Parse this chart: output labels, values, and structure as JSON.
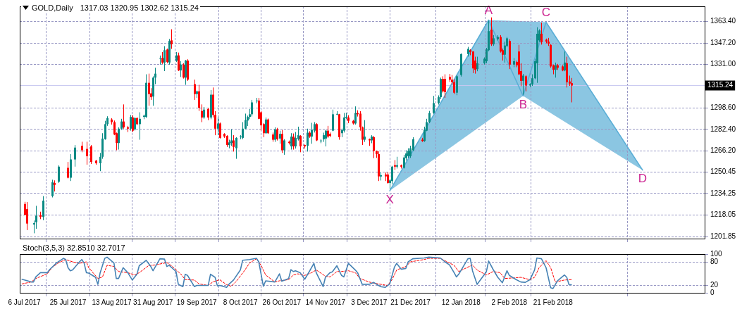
{
  "chart_data": [
    {
      "type": "candlestick",
      "title": "GOLD,Daily",
      "subtitle": "1317.03 1320.95 1302.62 1315.24",
      "x": [
        "2017-07-06",
        "2017-07-07",
        "2017-07-10",
        "2017-07-11",
        "2017-07-13",
        "2017-07-14",
        "2017-07-18",
        "2017-07-19",
        "2017-07-21",
        "2017-07-25",
        "2017-07-26",
        "2017-07-28",
        "2017-07-31",
        "2017-08-02",
        "2017-08-04",
        "2017-08-06",
        "2017-08-08",
        "2017-08-09",
        "2017-08-10",
        "2017-08-11",
        "2017-08-13",
        "2017-08-14",
        "2017-08-15",
        "2017-08-16",
        "2017-08-17",
        "2017-08-18",
        "2017-08-20",
        "2017-08-21",
        "2017-08-22",
        "2017-08-23",
        "2017-08-24",
        "2017-08-25",
        "2017-08-27",
        "2017-08-28",
        "2017-08-29",
        "2017-08-30",
        "2017-08-31",
        "2017-09-01",
        "2017-09-03",
        "2017-09-04",
        "2017-09-05",
        "2017-09-06",
        "2017-09-07",
        "2017-09-08",
        "2017-09-10",
        "2017-09-11",
        "2017-09-12",
        "2017-09-13",
        "2017-09-14",
        "2017-09-15",
        "2017-09-18",
        "2017-09-19",
        "2017-09-20",
        "2017-09-21",
        "2017-09-22",
        "2017-09-24",
        "2017-09-25",
        "2017-09-26",
        "2017-09-27",
        "2017-09-28",
        "2017-09-29",
        "2017-10-01",
        "2017-10-02",
        "2017-10-03",
        "2017-10-04",
        "2017-10-05",
        "2017-10-06",
        "2017-10-08",
        "2017-10-09",
        "2017-10-10",
        "2017-10-11",
        "2017-10-12",
        "2017-10-13",
        "2017-10-15",
        "2017-10-16",
        "2017-10-17",
        "2017-10-18",
        "2017-10-19",
        "2017-10-20",
        "2017-10-22",
        "2017-10-23",
        "2017-10-24",
        "2017-10-25",
        "2017-10-26",
        "2017-10-27",
        "2017-10-29",
        "2017-10-30",
        "2017-10-31",
        "2017-11-01",
        "2017-11-02",
        "2017-11-03",
        "2017-11-05",
        "2017-11-06",
        "2017-11-07",
        "2017-11-08",
        "2017-11-09",
        "2017-11-10",
        "2017-11-12",
        "2017-11-13",
        "2017-11-14",
        "2017-11-15",
        "2017-11-16",
        "2017-11-17",
        "2017-11-19",
        "2017-11-20",
        "2017-11-21",
        "2017-11-22",
        "2017-11-23",
        "2017-11-24",
        "2017-11-26",
        "2017-11-27",
        "2017-11-28",
        "2017-11-29",
        "2017-11-30",
        "2017-12-01",
        "2017-12-03",
        "2017-12-04",
        "2017-12-05",
        "2017-12-06",
        "2017-12-07",
        "2017-12-08",
        "2017-12-10",
        "2017-12-11",
        "2017-12-12",
        "2017-12-13",
        "2017-12-14",
        "2017-12-15",
        "2017-12-17",
        "2017-12-18",
        "2017-12-19",
        "2017-12-20",
        "2017-12-21",
        "2017-12-22",
        "2017-12-26",
        "2017-12-27",
        "2017-12-28",
        "2017-12-29",
        "2017-12-31",
        "2018-01-02",
        "2018-01-03",
        "2018-01-04",
        "2018-01-05",
        "2018-01-07",
        "2018-01-08",
        "2018-01-09",
        "2018-01-10",
        "2018-01-12",
        "2018-01-15",
        "2018-01-16",
        "2018-01-17",
        "2018-01-18",
        "2018-01-19",
        "2018-01-22",
        "2018-01-23",
        "2018-01-24",
        "2018-01-25",
        "2018-01-26",
        "2018-01-28",
        "2018-01-29",
        "2018-01-30",
        "2018-01-31",
        "2018-02-01",
        "2018-02-02",
        "2018-02-04",
        "2018-02-05",
        "2018-02-06",
        "2018-02-07",
        "2018-02-08",
        "2018-02-09",
        "2018-02-11",
        "2018-02-12",
        "2018-02-13",
        "2018-02-14",
        "2018-02-15",
        "2018-02-16",
        "2018-02-18",
        "2018-02-19",
        "2018-02-20",
        "2018-02-21",
        "2018-02-22",
        "2018-02-23",
        "2018-02-25",
        "2018-02-26",
        "2018-02-27",
        "2018-02-28",
        "2018-03-01"
      ],
      "ohlc": [
        [
          1226.4,
          1228,
          1218,
          1218.1
        ],
        [
          1222.5,
          1227.9,
          1206.8,
          1211.7
        ],
        [
          1211,
          1214,
          1204.4,
          1212
        ],
        [
          1212.7,
          1225,
          1207.8,
          1217.6
        ],
        [
          1218,
          1220.6,
          1215,
          1216.6
        ],
        [
          1216.6,
          1232.3,
          1214.2,
          1228.9
        ],
        [
          1232.3,
          1244.6,
          1231.3,
          1242.7
        ],
        [
          1242.2,
          1244.1,
          1235.8,
          1240.7
        ],
        [
          1243.1,
          1255.4,
          1242.2,
          1254.4
        ],
        [
          1253.5,
          1257.9,
          1245.6,
          1246.1
        ],
        [
          1246.1,
          1263.8,
          1243.6,
          1259.8
        ],
        [
          1259.8,
          1270.6,
          1254.4,
          1268.7
        ],
        [
          1270.1,
          1273.1,
          1265.2,
          1266.7
        ],
        [
          1267.7,
          1273.1,
          1255.9,
          1262.3
        ],
        [
          1269.6,
          1270.6,
          1256.4,
          1257.9
        ],
        [
          1258.9,
          1259.5,
          1255.9,
          1256.9
        ],
        [
          1256.9,
          1264.7,
          1251,
          1261.8
        ],
        [
          1261.8,
          1279.5,
          1260.3,
          1275.5
        ],
        [
          1275,
          1288.8,
          1274.6,
          1286.3
        ],
        [
          1286.3,
          1292.2,
          1285,
          1290.8
        ],
        [
          1289.8,
          1290.8,
          1286,
          1287.8
        ],
        [
          1287.8,
          1289,
          1278,
          1278.5
        ],
        [
          1279.5,
          1280,
          1266.7,
          1272.1
        ],
        [
          1272.1,
          1283.9,
          1267.2,
          1282.9
        ],
        [
          1282.9,
          1290.3,
          1282,
          1288.3
        ],
        [
          1288.3,
          1301.1,
          1282.9,
          1283.9
        ],
        [
          1283.9,
          1285,
          1280.4,
          1282.9
        ],
        [
          1282.9,
          1293.2,
          1281.4,
          1291.7
        ],
        [
          1291.3,
          1293,
          1280.4,
          1281.4
        ],
        [
          1282.4,
          1291.5,
          1281.5,
          1290.8
        ],
        [
          1290.8,
          1291.5,
          1285.5,
          1286.3
        ],
        [
          1286.3,
          1295.2,
          1274.6,
          1290.3
        ],
        [
          1291.7,
          1293.5,
          1290,
          1292.7
        ],
        [
          1291.7,
          1323.7,
          1291,
          1317.3
        ],
        [
          1317.3,
          1324.2,
          1300.1,
          1308.9
        ],
        [
          1309.4,
          1313.3,
          1304.5,
          1306.5
        ],
        [
          1307,
          1322.2,
          1300.1,
          1321.2
        ],
        [
          1321.2,
          1328.6,
          1316.3,
          1324.2
        ],
        [
          1335.5,
          1337.8,
          1331,
          1336
        ],
        [
          1335.9,
          1340.4,
          1331.5,
          1332.5
        ],
        [
          1332.5,
          1344.8,
          1326.1,
          1341.8
        ],
        [
          1342.3,
          1343,
          1332,
          1333
        ],
        [
          1332.5,
          1350.2,
          1331,
          1348.7
        ],
        [
          1349.2,
          1357.5,
          1342.8,
          1346.2
        ],
        [
          1333.9,
          1340.4,
          1333,
          1337.9
        ],
        [
          1337.9,
          1340,
          1326.1,
          1326.6
        ],
        [
          1326.6,
          1333.5,
          1321.7,
          1331
        ],
        [
          1331,
          1332,
          1320.5,
          1321.2
        ],
        [
          1321.2,
          1334.5,
          1315.8,
          1334
        ],
        [
          1334,
          1335,
          1318.7,
          1319.7
        ],
        [
          1316.3,
          1319.7,
          1304.5,
          1308.9
        ],
        [
          1308.9,
          1311.5,
          1306,
          1310.9
        ],
        [
          1310.9,
          1315.8,
          1296.2,
          1298.6
        ],
        [
          1296.2,
          1301.1,
          1287.8,
          1291.3
        ],
        [
          1291.3,
          1299.1,
          1290.3,
          1297.2
        ],
        [
          1297.7,
          1298.5,
          1289.3,
          1291.3
        ],
        [
          1291.3,
          1311.9,
          1290,
          1308.4
        ],
        [
          1308.4,
          1313.8,
          1291.3,
          1293.2
        ],
        [
          1293.2,
          1296,
          1278,
          1282.9
        ],
        [
          1282.9,
          1291.3,
          1278,
          1286.8
        ],
        [
          1286.8,
          1287.5,
          1275.5,
          1276
        ],
        [
          1279,
          1279.5,
          1276,
          1277
        ],
        [
          1277.5,
          1278,
          1269.2,
          1270.6
        ],
        [
          1270.6,
          1274.6,
          1268.2,
          1272.6
        ],
        [
          1272.1,
          1282.4,
          1270,
          1274.1
        ],
        [
          1274.1,
          1278,
          1265.7,
          1269.2
        ],
        [
          1268.2,
          1276.5,
          1260.3,
          1276
        ],
        [
          1276.5,
          1278,
          1275,
          1277
        ],
        [
          1276,
          1287.8,
          1275,
          1282.9
        ],
        [
          1282.9,
          1294.2,
          1282.5,
          1289.3
        ],
        [
          1289,
          1292.7,
          1284.9,
          1291.7
        ],
        [
          1291.7,
          1297.6,
          1290,
          1293.7
        ],
        [
          1293.7,
          1304.5,
          1292,
          1302.6
        ],
        [
          1303.5,
          1306,
          1302,
          1304
        ],
        [
          1304,
          1306,
          1290,
          1290.3
        ],
        [
          1295.2,
          1296,
          1281.4,
          1285.4
        ],
        [
          1286.3,
          1287,
          1276.5,
          1279.5
        ],
        [
          1279.5,
          1291.3,
          1279,
          1289.8
        ],
        [
          1289.8,
          1290.5,
          1279,
          1279.5
        ],
        [
          1278.5,
          1280,
          1273.1,
          1274.6
        ],
        [
          1274.6,
          1283.9,
          1273,
          1282.4
        ],
        [
          1282.4,
          1283.5,
          1274,
          1275
        ],
        [
          1275.5,
          1281.4,
          1271.6,
          1279
        ],
        [
          1279,
          1281.9,
          1264.7,
          1266.7
        ],
        [
          1266.7,
          1275,
          1263.3,
          1274.1
        ],
        [
          1273.1,
          1274,
          1271,
          1272.1
        ],
        [
          1269.6,
          1279.5,
          1267.2,
          1277
        ],
        [
          1277,
          1279.3,
          1267.2,
          1269.6
        ],
        [
          1269.6,
          1280.4,
          1268,
          1276
        ],
        [
          1275,
          1284.4,
          1274,
          1278
        ],
        [
          1277.5,
          1278,
          1265.2,
          1269.6
        ],
        [
          1270.6,
          1271,
          1268,
          1269.6
        ],
        [
          1270.1,
          1282.9,
          1265.7,
          1279.9
        ],
        [
          1279.9,
          1281,
          1276,
          1277
        ],
        [
          1277,
          1287.3,
          1271.6,
          1281.9
        ],
        [
          1281.4,
          1287.8,
          1280,
          1286.3
        ],
        [
          1286.3,
          1287,
          1273.6,
          1274.1
        ],
        [
          1273.5,
          1275,
          1272,
          1274
        ],
        [
          1275,
          1279.9,
          1273,
          1278
        ],
        [
          1275.5,
          1282,
          1269.6,
          1281.4
        ],
        [
          1281.4,
          1285,
          1276,
          1277
        ],
        [
          1279,
          1280,
          1276.5,
          1277.5
        ],
        [
          1281.4,
          1297.2,
          1281,
          1293.7
        ],
        [
          1293.5,
          1296,
          1293,
          1294
        ],
        [
          1293.7,
          1294,
          1274.6,
          1276.5
        ],
        [
          1279.5,
          1283,
          1276.5,
          1281.9
        ],
        [
          1281.4,
          1294.7,
          1280,
          1291.3
        ],
        [
          1291,
          1294.7,
          1290,
          1291.8
        ],
        [
          1291.3,
          1293,
          1287,
          1288.8
        ],
        [
          1288.8,
          1289.5,
          1286,
          1286.8
        ],
        [
          1286.8,
          1299.6,
          1286,
          1294.7
        ],
        [
          1294.7,
          1296.7,
          1292,
          1293.7
        ],
        [
          1294.2,
          1296,
          1281.4,
          1283.9
        ],
        [
          1283.9,
          1284.5,
          1270.6,
          1274.6
        ],
        [
          1274.6,
          1289.3,
          1273,
          1277
        ],
        [
          1275,
          1275.5,
          1270,
          1274.1
        ],
        [
          1274.1,
          1278,
          1272,
          1277
        ],
        [
          1276.5,
          1277.5,
          1260.8,
          1266.2
        ],
        [
          1266.2,
          1266.5,
          1261,
          1263.8
        ],
        [
          1263.8,
          1266,
          1243.6,
          1247.1
        ],
        [
          1247,
          1250,
          1244,
          1248
        ],
        [
          1248.5,
          1250,
          1243.6,
          1247.1
        ],
        [
          1248.5,
          1250.3,
          1241.7,
          1242.2
        ],
        [
          1242.2,
          1245,
          1237.7,
          1244.1
        ],
        [
          1243.6,
          1255,
          1241.2,
          1254.4
        ],
        [
          1255.5,
          1259.3,
          1252,
          1254.4
        ],
        [
          1254.4,
          1261.8,
          1253,
          1255.5
        ],
        [
          1255.4,
          1256,
          1253,
          1254.4
        ],
        [
          1253.5,
          1263.3,
          1253,
          1261.3
        ],
        [
          1260.8,
          1266.7,
          1259,
          1264.3
        ],
        [
          1262.3,
          1268.2,
          1261,
          1266.2
        ],
        [
          1262.3,
          1270.1,
          1261,
          1268.2
        ],
        [
          1266.7,
          1276.5,
          1266,
          1275
        ],
        [
          1274.6,
          1276,
          1273,
          1273.6
        ],
        [
          1273.6,
          1284.4,
          1273,
          1281.9
        ],
        [
          1281.4,
          1290.3,
          1281,
          1287.8
        ],
        [
          1287.8,
          1296.2,
          1287,
          1294.7
        ],
        [
          1294.7,
          1307.5,
          1294,
          1302.1
        ],
        [
          1302.1,
          1307.9,
          1301,
          1306.5
        ],
        [
          1306.5,
          1321.2,
          1305,
          1320.2
        ],
        [
          1320.2,
          1322.2,
          1310,
          1310.9
        ],
        [
          1320.2,
          1323.7,
          1306,
          1310.4
        ],
        [
          1321.7,
          1324,
          1318,
          1319.7
        ],
        [
          1319.7,
          1323.2,
          1316,
          1317.8
        ],
        [
          1317.8,
          1320,
          1308.9,
          1309.9
        ],
        [
          1309.9,
          1323,
          1308,
          1322.2
        ],
        [
          1323.2,
          1339.4,
          1322,
          1338.9
        ],
        [
          1338.9,
          1344.3,
          1337,
          1342.8
        ],
        [
          1341.8,
          1342.5,
          1338,
          1340.4
        ],
        [
          1340.8,
          1341,
          1324.6,
          1328.1
        ],
        [
          1334,
          1336.9,
          1324.2,
          1327.1
        ],
        [
          1327.6,
          1336.9,
          1326,
          1332
        ],
        [
          1332,
          1336.4,
          1331,
          1335.4
        ],
        [
          1333.5,
          1343.5,
          1332,
          1342.3
        ],
        [
          1341.8,
          1363.9,
          1341,
          1356.1
        ],
        [
          1357.1,
          1366.4,
          1345,
          1346.2
        ],
        [
          1346.2,
          1353.1,
          1345,
          1350.7
        ],
        [
          1350,
          1353,
          1349,
          1351.7
        ],
        [
          1351.7,
          1353.1,
          1340,
          1340.8
        ],
        [
          1341.8,
          1343,
          1334,
          1338.4
        ],
        [
          1338.4,
          1348.2,
          1332.5,
          1345.3
        ],
        [
          1345,
          1351.7,
          1344,
          1350.7
        ],
        [
          1348.7,
          1350,
          1327.6,
          1331
        ],
        [
          1331,
          1335.9,
          1329,
          1333.5
        ],
        [
          1333,
          1334,
          1329,
          1330.5
        ],
        [
          1340.8,
          1345.8,
          1323,
          1323.7
        ],
        [
          1326.1,
          1332,
          1314.8,
          1318.8
        ],
        [
          1318.8,
          1324,
          1308.4,
          1322.7
        ],
        [
          1322.2,
          1323,
          1310.9,
          1315.3
        ],
        [
          1315.3,
          1317,
          1314,
          1316.3
        ],
        [
          1316.3,
          1323.7,
          1315,
          1320.7
        ],
        [
          1320.7,
          1335.4,
          1320,
          1333.5
        ],
        [
          1332,
          1359,
          1317.3,
          1354.1
        ],
        [
          1349.2,
          1357.5,
          1348,
          1356.6
        ],
        [
          1354.1,
          1362.5,
          1346,
          1347.7
        ],
        [
          1349.7,
          1350.5,
          1347,
          1348.2
        ],
        [
          1348.2,
          1351,
          1345,
          1346.7
        ],
        [
          1345.8,
          1346.3,
          1328.6,
          1329.6
        ],
        [
          1330.5,
          1331,
          1323.7,
          1327.1
        ],
        [
          1327.1,
          1332.5,
          1321.2,
          1330.5
        ],
        [
          1330.5,
          1331.5,
          1327,
          1328.6
        ],
        [
          1329.6,
          1330.5,
          1326,
          1326.6
        ],
        [
          1326.6,
          1340.8,
          1326,
          1332.5
        ],
        [
          1332,
          1336.9,
          1313.8,
          1317.8
        ],
        [
          1318.3,
          1322.7,
          1315,
          1316.8
        ],
        [
          1317.03,
          1320.95,
          1302.62,
          1315.24
        ]
      ],
      "colors": [
        "#ff0000",
        "#ff0000",
        "#0a8a84",
        "#0a8a84",
        "#ff0000",
        "#0a8a84",
        "#0a8a84",
        "#ff0000",
        "#0a8a84",
        "#ff0000",
        "#0a8a84",
        "#0a8a84",
        "#ff0000",
        "#ff0000",
        "#ff0000",
        "#ff0000",
        "#0a8a84",
        "#0a8a84",
        "#0a8a84",
        "#0a8a84",
        "#ff0000",
        "#ff0000",
        "#ff0000",
        "#0a8a84",
        "#0a8a84",
        "#ff0000",
        "#ff0000",
        "#0a8a84",
        "#ff0000",
        "#0a8a84",
        "#ff0000",
        "#0a8a84",
        "#0a8a84",
        "#0a8a84",
        "#ff0000",
        "#ff0000",
        "#0a8a84",
        "#0a8a84",
        "#0a8a84",
        "#ff0000",
        "#0a8a84",
        "#ff0000",
        "#0a8a84",
        "#ff0000",
        "#0a8a84",
        "#ff0000",
        "#0a8a84",
        "#ff0000",
        "#0a8a84",
        "#ff0000",
        "#ff0000",
        "#0a8a84",
        "#ff0000",
        "#ff0000",
        "#0a8a84",
        "#ff0000",
        "#0a8a84",
        "#ff0000",
        "#ff0000",
        "#0a8a84",
        "#ff0000",
        "#ff0000",
        "#ff0000",
        "#0a8a84",
        "#0a8a84",
        "#ff0000",
        "#0a8a84",
        "#0a8a84",
        "#0a8a84",
        "#0a8a84",
        "#0a8a84",
        "#0a8a84",
        "#0a8a84",
        "#0a8a84",
        "#ff0000",
        "#ff0000",
        "#ff0000",
        "#0a8a84",
        "#ff0000",
        "#ff0000",
        "#0a8a84",
        "#ff0000",
        "#0a8a84",
        "#ff0000",
        "#0a8a84",
        "#ff0000",
        "#0a8a84",
        "#ff0000",
        "#0a8a84",
        "#0a8a84",
        "#ff0000",
        "#ff0000",
        "#0a8a84",
        "#ff0000",
        "#0a8a84",
        "#0a8a84",
        "#ff0000",
        "#0a8a84",
        "#0a8a84",
        "#0a8a84",
        "#ff0000",
        "#ff0000",
        "#0a8a84",
        "#0a8a84",
        "#ff0000",
        "#0a8a84",
        "#0a8a84",
        "#0a8a84",
        "#ff0000",
        "#ff0000",
        "#0a8a84",
        "#ff0000",
        "#ff0000",
        "#ff0000",
        "#0a8a84",
        "#ff0000",
        "#0a8a84",
        "#ff0000",
        "#ff0000",
        "#ff0000",
        "#0a8a84",
        "#ff0000",
        "#ff0000",
        "#0a8a84",
        "#0a8a84",
        "#ff0000",
        "#0a8a84",
        "#ff0000",
        "#0a8a84",
        "#0a8a84",
        "#0a8a84",
        "#0a8a84",
        "#0a8a84",
        "#ff0000",
        "#0a8a84",
        "#0a8a84",
        "#0a8a84",
        "#0a8a84",
        "#0a8a84",
        "#0a8a84",
        "#ff0000",
        "#ff0000",
        "#ff0000",
        "#ff0000",
        "#ff0000",
        "#0a8a84",
        "#0a8a84",
        "#0a8a84",
        "#ff0000",
        "#ff0000",
        "#ff0000",
        "#0a8a84",
        "#0a8a84",
        "#0a8a84",
        "#0a8a84",
        "#ff0000",
        "#0a8a84",
        "#0a8a84",
        "#ff0000",
        "#ff0000",
        "#0a8a84",
        "#0a8a84",
        "#ff0000",
        "#0a8a84",
        "#ff0000",
        "#ff0000",
        "#ff0000",
        "#0a8a84",
        "#ff0000",
        "#0a8a84",
        "#0a8a84",
        "#0a8a84",
        "#0a8a84",
        "#0a8a84",
        "#ff0000",
        "#ff0000",
        "#ff0000",
        "#ff0000",
        "#ff0000",
        "#0a8a84",
        "#ff0000",
        "#ff0000",
        "#0a8a84",
        "#ff0000",
        "#ff0000",
        "#ff0000"
      ],
      "series": [
        {
          "type": "line",
          "color": "#5aaed6",
          "x": [
            "2017-12-12",
            "2018-01-24",
            "2018-02-08",
            "2018-02-18",
            "2018-04-01"
          ],
          "values": [
            1236.3,
            1364.4,
            1307.5,
            1362.8,
            1251.8
          ]
        }
      ],
      "annotations": [
        {
          "text": "X",
          "x": "2017-12-12",
          "y": 1236.3
        },
        {
          "text": "A",
          "x": "2018-01-24",
          "y": 1364.4
        },
        {
          "text": "B",
          "x": "2018-02-08",
          "y": 1307.5
        },
        {
          "text": "C",
          "x": "2018-02-18",
          "y": 1362.8
        },
        {
          "text": "D",
          "x": "2018-04-01",
          "y": 1251.8
        }
      ],
      "ref_lines": [
        {
          "axis": "y",
          "value": 1315.24,
          "label": "1315.24",
          "color": "#c8c8f0"
        }
      ],
      "xlim": [
        "2017-07-04",
        "2018-04-28"
      ],
      "xticks": [
        {
          "value": "2017-07-06",
          "label": null
        },
        {
          "value": "2017-07-25",
          "label": null
        },
        {
          "value": "2017-08-13",
          "label": null
        },
        {
          "value": "2017-08-31",
          "label": null
        },
        {
          "value": "2017-09-19",
          "label": null
        },
        {
          "value": "2017-10-08",
          "label": null
        },
        {
          "value": "2017-10-26",
          "label": null
        },
        {
          "value": "2017-11-14",
          "label": null
        },
        {
          "value": "2017-12-03",
          "label": null
        },
        {
          "value": "2017-12-21",
          "label": null
        },
        {
          "value": "2018-01-12",
          "label": null
        },
        {
          "value": "2018-02-02",
          "label": null
        },
        {
          "value": "2018-02-21",
          "label": null
        },
        {
          "value": "2018-04-27",
          "label": null
        }
      ],
      "ylim": [
        1200.4,
        1374.7
      ],
      "yticks": [
        {
          "value": 1201.85,
          "label": "1201.85"
        },
        {
          "value": 1218.05,
          "label": "1218.05"
        },
        {
          "value": 1234.25,
          "label": "1234.25"
        },
        {
          "value": 1250.45,
          "label": "1250.45"
        },
        {
          "value": 1266.2,
          "label": "1266.20"
        },
        {
          "value": 1282.4,
          "label": "1282.40"
        },
        {
          "value": 1298.6,
          "label": "1298.60"
        },
        {
          "value": 1331,
          "label": "1331.00"
        },
        {
          "value": 1347.2,
          "label": "1347.20"
        },
        {
          "value": 1363.4,
          "label": "1363.40"
        }
      ],
      "grid": true,
      "tick_labels": "y",
      "marker": "none"
    },
    {
      "type": "line",
      "title": "Stoch(3,5,3) 32.8510 32.7017",
      "series": [
        {
          "color": "#4682b4",
          "line_style": "solid",
          "x": [
            "2017-07-05",
            "2017-07-09",
            "2017-07-10",
            "2017-07-11",
            "2017-07-13",
            "2017-07-16",
            "2017-07-17",
            "2017-07-20",
            "2017-07-23",
            "2017-07-24",
            "2017-07-25",
            "2017-07-26",
            "2017-07-27",
            "2017-07-30",
            "2017-07-31",
            "2017-08-01",
            "2017-08-02",
            "2017-08-03",
            "2017-08-06",
            "2017-08-07",
            "2017-08-08",
            "2017-08-10",
            "2017-08-11",
            "2017-08-14",
            "2017-08-15",
            "2017-08-16",
            "2017-08-18",
            "2017-08-20",
            "2017-08-22",
            "2017-08-24",
            "2017-08-25",
            "2017-08-28",
            "2017-08-30",
            "2017-08-31",
            "2017-09-03",
            "2017-09-05",
            "2017-09-06",
            "2017-09-07",
            "2017-09-10",
            "2017-09-11",
            "2017-09-13",
            "2017-09-14",
            "2017-09-15",
            "2017-09-18",
            "2017-09-19",
            "2017-09-24",
            "2017-09-25",
            "2017-09-27",
            "2017-09-28",
            "2017-09-29",
            "2017-10-02",
            "2017-10-03",
            "2017-10-05",
            "2017-10-08",
            "2017-10-09",
            "2017-10-12",
            "2017-10-15",
            "2017-10-16",
            "2017-10-18",
            "2017-10-19",
            "2017-10-23",
            "2017-10-25",
            "2017-10-26",
            "2017-10-29",
            "2017-10-30",
            "2017-10-31",
            "2017-11-01",
            "2017-11-03",
            "2017-11-05",
            "2017-11-07",
            "2017-11-09",
            "2017-11-10",
            "2017-11-13",
            "2017-11-14",
            "2017-11-16",
            "2017-11-17",
            "2017-11-19",
            "2017-11-21",
            "2017-11-22",
            "2017-11-24",
            "2017-11-27",
            "2017-11-28",
            "2017-11-30",
            "2017-12-03",
            "2017-12-05",
            "2017-12-06",
            "2017-12-08",
            "2017-12-10",
            "2017-12-12",
            "2017-12-14",
            "2017-12-15",
            "2017-12-17",
            "2017-12-19",
            "2017-12-20",
            "2017-12-22",
            "2017-12-27",
            "2017-12-29",
            "2018-01-03",
            "2018-01-05",
            "2018-01-07",
            "2018-01-09",
            "2018-01-10",
            "2018-01-11",
            "2018-01-15",
            "2018-01-16",
            "2018-01-17",
            "2018-01-19",
            "2018-01-23",
            "2018-01-24",
            "2018-01-26",
            "2018-01-28",
            "2018-01-30",
            "2018-02-01",
            "2018-02-02",
            "2018-02-05",
            "2018-02-07",
            "2018-02-09",
            "2018-02-11",
            "2018-02-13",
            "2018-02-14",
            "2018-02-16",
            "2018-02-18",
            "2018-02-20",
            "2018-02-21",
            "2018-02-23",
            "2018-02-26",
            "2018-02-27",
            "2018-02-28",
            "2018-03-01"
          ],
          "values": [
            35,
            28,
            28,
            41,
            52,
            52,
            60,
            77,
            89,
            86,
            65,
            57,
            59,
            80,
            86,
            77,
            52,
            51,
            40,
            22,
            52,
            89,
            92,
            77,
            37,
            37,
            65,
            52,
            33,
            48,
            70,
            84,
            68,
            57,
            88,
            87,
            68,
            71,
            55,
            22,
            16,
            48,
            45,
            16,
            19,
            19,
            48,
            40,
            18,
            19,
            14,
            22,
            33,
            59,
            84,
            86,
            89,
            80,
            17,
            31,
            28,
            49,
            30,
            37,
            60,
            55,
            57,
            52,
            35,
            55,
            76,
            52,
            16,
            40,
            52,
            54,
            70,
            45,
            41,
            76,
            59,
            52,
            22,
            22,
            27,
            23,
            16,
            14,
            23,
            66,
            76,
            61,
            63,
            80,
            88,
            90,
            92,
            90,
            80,
            72,
            52,
            41,
            48,
            88,
            89,
            57,
            22,
            54,
            82,
            60,
            40,
            26,
            57,
            45,
            34,
            28,
            27,
            34,
            59,
            90,
            88,
            65,
            13,
            11,
            31,
            46,
            40,
            21,
            21
          ]
        },
        {
          "color": "#ff0000",
          "line_style": "dashed",
          "x": [
            "2017-07-05",
            "2017-07-09",
            "2017-07-11",
            "2017-07-16",
            "2017-07-18",
            "2017-07-21",
            "2017-07-24",
            "2017-07-27",
            "2017-07-30",
            "2017-08-02",
            "2017-08-03",
            "2017-08-07",
            "2017-08-09",
            "2017-08-11",
            "2017-08-14",
            "2017-08-16",
            "2017-08-20",
            "2017-08-23",
            "2017-08-25",
            "2017-08-29",
            "2017-09-01",
            "2017-09-06",
            "2017-09-08",
            "2017-09-12",
            "2017-09-14",
            "2017-09-18",
            "2017-09-20",
            "2017-09-24",
            "2017-09-26",
            "2017-09-29",
            "2017-10-02",
            "2017-10-04",
            "2017-10-06",
            "2017-10-10",
            "2017-10-12",
            "2017-10-15",
            "2017-10-17",
            "2017-10-19",
            "2017-10-23",
            "2017-10-25",
            "2017-10-29",
            "2017-10-31",
            "2017-11-02",
            "2017-11-05",
            "2017-11-08",
            "2017-11-10",
            "2017-11-14",
            "2017-11-16",
            "2017-11-19",
            "2017-11-21",
            "2017-11-24",
            "2017-11-27",
            "2017-11-29",
            "2017-12-03",
            "2017-12-05",
            "2017-12-08",
            "2017-12-11",
            "2017-12-13",
            "2017-12-15",
            "2017-12-19",
            "2017-12-21",
            "2017-12-27",
            "2017-12-29",
            "2018-01-03",
            "2018-01-05",
            "2018-01-09",
            "2018-01-11",
            "2018-01-17",
            "2018-01-19",
            "2018-01-23",
            "2018-01-26",
            "2018-01-29",
            "2018-01-31",
            "2018-02-05",
            "2018-02-07",
            "2018-02-11",
            "2018-02-13",
            "2018-02-15",
            "2018-02-18",
            "2018-02-20",
            "2018-02-22",
            "2018-02-26",
            "2018-03-01"
          ],
          "values": [
            23,
            28,
            37,
            49,
            65,
            78,
            86,
            80,
            76,
            80,
            65,
            37,
            41,
            71,
            68,
            55,
            52,
            46,
            52,
            70,
            72,
            78,
            70,
            49,
            34,
            33,
            23,
            19,
            28,
            34,
            21,
            17,
            28,
            59,
            77,
            88,
            71,
            46,
            28,
            31,
            34,
            46,
            49,
            45,
            52,
            59,
            43,
            41,
            55,
            55,
            57,
            52,
            37,
            28,
            25,
            22,
            19,
            34,
            59,
            68,
            80,
            86,
            89,
            89,
            83,
            71,
            55,
            72,
            59,
            46,
            55,
            52,
            37,
            39,
            40,
            34,
            40,
            65,
            83,
            65,
            28,
            33,
            34
          ]
        }
      ],
      "xlim": [
        "2017-07-04",
        "2018-04-28"
      ],
      "xticks": [
        {
          "value": "2017-07-06",
          "label": "6 Jul 2017"
        },
        {
          "value": "2017-07-25",
          "label": "25 Jul 2017"
        },
        {
          "value": "2017-08-13",
          "label": "13 Aug 2017"
        },
        {
          "value": "2017-08-31",
          "label": "31 Aug 2017"
        },
        {
          "value": "2017-09-19",
          "label": "19 Sep 2017"
        },
        {
          "value": "2017-10-08",
          "label": "8 Oct 2017"
        },
        {
          "value": "2017-10-26",
          "label": "26 Oct 2017"
        },
        {
          "value": "2017-11-14",
          "label": "14 Nov 2017"
        },
        {
          "value": "2017-12-03",
          "label": "3 Dec 2017"
        },
        {
          "value": "2017-12-21",
          "label": "21 Dec 2017"
        },
        {
          "value": "2018-01-12",
          "label": "12 Jan 2018"
        },
        {
          "value": "2018-02-02",
          "label": "2 Feb 2018"
        },
        {
          "value": "2018-02-21",
          "label": "21 Feb 2018"
        },
        {
          "value": "2018-04-27",
          "label": null
        }
      ],
      "ylim": [
        0,
        100
      ],
      "yticks": [
        0,
        20,
        80,
        100
      ],
      "grid": true,
      "marker": "none"
    }
  ]
}
